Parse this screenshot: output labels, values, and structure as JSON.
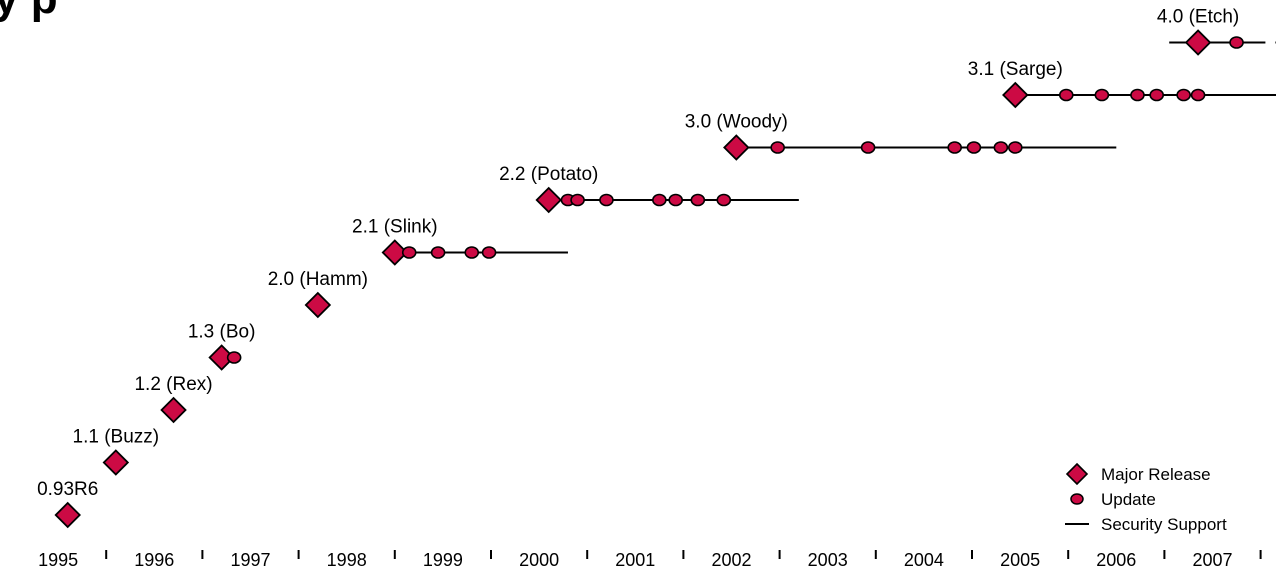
{
  "colors": {
    "marker_fill": "#cc0a44",
    "marker_stroke": "#000000",
    "line": "#000000"
  },
  "chart_data": {
    "type": "scatter",
    "title": "",
    "x_axis": {
      "ticks": [
        "1995",
        "1996",
        "1997",
        "1998",
        "1999",
        "2000",
        "2001",
        "2002",
        "2003",
        "2004",
        "2005",
        "2006",
        "2007"
      ],
      "range": [
        1995.0,
        2008.0
      ]
    },
    "legend": {
      "position": "bottom-right",
      "items": [
        {
          "marker": "diamond",
          "label": "Major Release"
        },
        {
          "marker": "circle",
          "label": "Update"
        },
        {
          "marker": "line",
          "label": "Security Support"
        }
      ]
    },
    "releases": [
      {
        "label": "0.93R6",
        "release": 1995.6
      },
      {
        "label": "1.1 (Buzz)",
        "release": 1996.1
      },
      {
        "label": "1.2 (Rex)",
        "release": 1996.7
      },
      {
        "label": "1.3 (Bo)",
        "release": 1997.2,
        "updates": [
          1997.33
        ]
      },
      {
        "label": "2.0 (Hamm)",
        "release": 1998.2
      },
      {
        "label": "2.1 (Slink)",
        "release": 1999.0,
        "updates": [
          1999.15,
          1999.45,
          1999.8,
          1999.98
        ],
        "security_end": 2000.8
      },
      {
        "label": "2.2 (Potato)",
        "release": 2000.6,
        "updates": [
          2000.8,
          2000.9,
          2001.2,
          2001.75,
          2001.92,
          2002.15,
          2002.42
        ],
        "security_end": 2003.2
      },
      {
        "label": "3.0 (Woody)",
        "release": 2002.55,
        "updates": [
          2002.98,
          2003.92,
          2004.82,
          2005.02,
          2005.3,
          2005.45
        ],
        "security_end": 2006.5
      },
      {
        "label": "3.1 (Sarge)",
        "release": 2005.45,
        "updates": [
          2005.98,
          2006.35,
          2006.72,
          2006.92,
          2007.2,
          2007.35
        ],
        "security_end": 2008.2,
        "security_continues": true
      },
      {
        "label": "4.0 (Etch)",
        "release": 2007.35,
        "updates": [
          2007.75
        ],
        "security_end": 2008.05,
        "security_start": 2007.05,
        "security_continues": true
      }
    ]
  }
}
